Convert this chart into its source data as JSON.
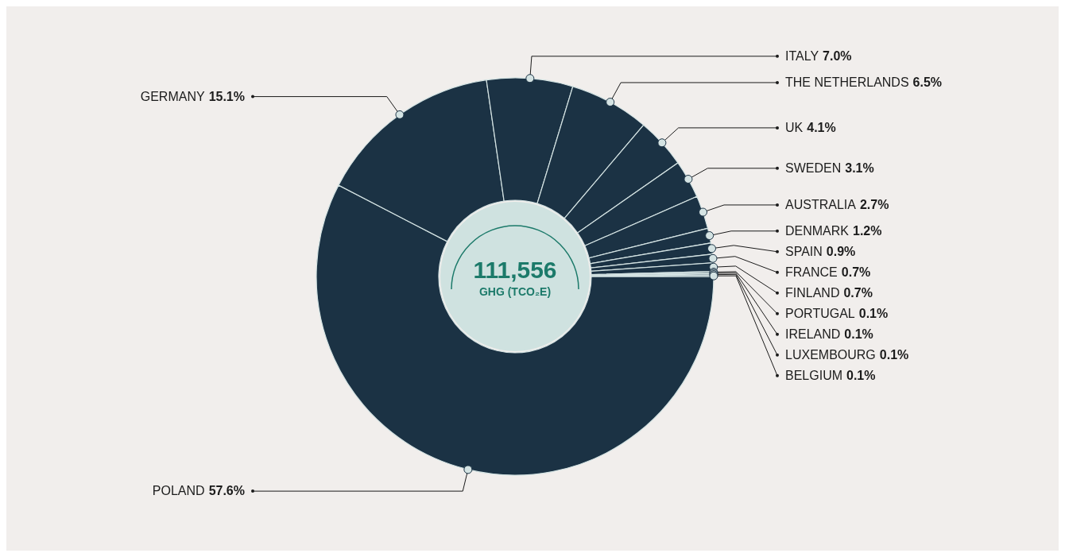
{
  "chart_data": {
    "type": "donut",
    "categories": [
      "POLAND",
      "GERMANY",
      "ITALY",
      "THE NETHERLANDS",
      "UK",
      "SWEDEN",
      "AUSTRALIA",
      "DENMARK",
      "SPAIN",
      "FRANCE",
      "FINLAND",
      "PORTUGAL",
      "IRELAND",
      "LUXEMBOURG",
      "BELGIUM"
    ],
    "values": [
      57.6,
      15.1,
      7.0,
      6.5,
      4.1,
      3.1,
      2.7,
      1.2,
      0.9,
      0.7,
      0.7,
      0.1,
      0.1,
      0.1,
      0.1
    ],
    "value_labels": [
      "57.6%",
      "15.1%",
      "7.0%",
      "6.5%",
      "4.1%",
      "3.1%",
      "2.7%",
      "1.2%",
      "0.9%",
      "0.7%",
      "0.7%",
      "0.1%",
      "0.1%",
      "0.1%",
      "0.1%"
    ],
    "colors": [
      "#1b3244",
      "#1b3244",
      "#1b3244",
      "#1b3244",
      "#1b3244",
      "#1b3244",
      "#1b3244",
      "#1b3244",
      "#1b3244",
      "#1b3244",
      "#1b3244",
      "#1b3244",
      "#1b3244",
      "#1b3244",
      "#1b3244"
    ],
    "annotations": [
      "111,556",
      "GHG (TCO₂E)"
    ]
  }
}
